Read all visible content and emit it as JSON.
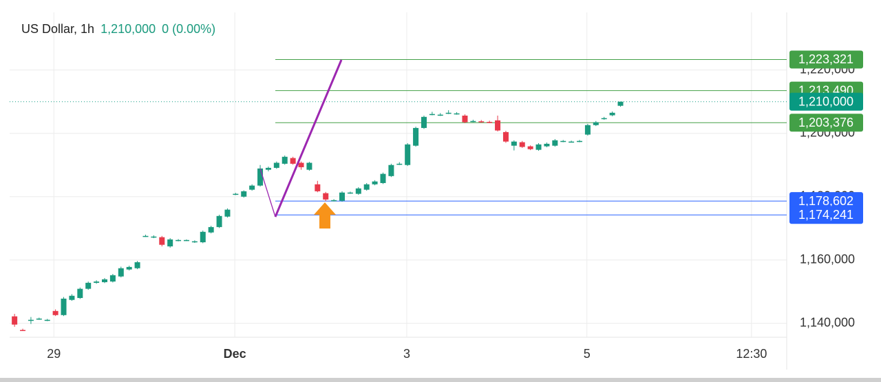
{
  "chart_data": {
    "type": "candlestick",
    "title": "US Dollar, 1h",
    "price_text": "1,210,000",
    "change_text": "0 (0.00%)",
    "up_color": "#1a9a7e",
    "down_color": "#e8394a",
    "grid": true,
    "xlim": [
      -0.6,
      94.3
    ],
    "xticks": [
      {
        "value": 4.8,
        "label": "29"
      },
      {
        "value": 26.9,
        "label": "Dec"
      },
      {
        "value": 47.9,
        "label": "3"
      },
      {
        "value": 69.9,
        "label": "5"
      },
      {
        "value": 90.0,
        "label": "12:30"
      }
    ],
    "ylim": [
      1135600,
      1238200
    ],
    "yticks": [
      {
        "value": 1140000,
        "label": "1,140,000"
      },
      {
        "value": 1160000,
        "label": "1,160,000"
      },
      {
        "value": 1180000,
        "label": "1,180,000"
      },
      {
        "value": 1200000,
        "label": "1,200,000"
      },
      {
        "value": 1220000,
        "label": "1,220,000"
      }
    ],
    "last_price": {
      "value": 1210000,
      "label": "1,210,000",
      "color": "#089981"
    },
    "levels": [
      {
        "value": 1223321,
        "label": "1,223,321",
        "color": "#43a047"
      },
      {
        "value": 1213490,
        "label": "1,213,490",
        "color": "#43a047"
      },
      {
        "value": 1203376,
        "label": "1,203,376",
        "color": "#43a047"
      },
      {
        "value": 1178602,
        "label": "1,178,602",
        "color": "#2962ff"
      },
      {
        "value": 1174241,
        "label": "1,174,241",
        "color": "#2962ff"
      }
    ],
    "candles": [
      [
        1142200,
        1143000,
        1138900,
        1139600
      ],
      [
        1137900,
        1138300,
        1137600,
        1137800
      ],
      [
        1141000,
        1142000,
        1139800,
        1141100
      ],
      [
        1141400,
        1141800,
        1141100,
        1141500
      ],
      [
        1141000,
        1141400,
        1140700,
        1141100
      ],
      [
        1143900,
        1144400,
        1142300,
        1142600
      ],
      [
        1142600,
        1148300,
        1142300,
        1147800
      ],
      [
        1147400,
        1149200,
        1147100,
        1148700
      ],
      [
        1148000,
        1151300,
        1147700,
        1150900
      ],
      [
        1150900,
        1153200,
        1150600,
        1152800
      ],
      [
        1152800,
        1153600,
        1152500,
        1153200
      ],
      [
        1153000,
        1154300,
        1152700,
        1153900
      ],
      [
        1153200,
        1155600,
        1152900,
        1155200
      ],
      [
        1154800,
        1157900,
        1154500,
        1157400
      ],
      [
        1157000,
        1158200,
        1156700,
        1157800
      ],
      [
        1157400,
        1159700,
        1157100,
        1159300
      ],
      [
        1167500,
        1168000,
        1167300,
        1167600
      ],
      [
        1167300,
        1167800,
        1166900,
        1167400
      ],
      [
        1167200,
        1167600,
        1164300,
        1164800
      ],
      [
        1164300,
        1166900,
        1163900,
        1166500
      ],
      [
        1166200,
        1166600,
        1165900,
        1166300
      ],
      [
        1166200,
        1166500,
        1166000,
        1166300
      ],
      [
        1165800,
        1166200,
        1165400,
        1165900
      ],
      [
        1165600,
        1169300,
        1165300,
        1168900
      ],
      [
        1168700,
        1170800,
        1168400,
        1170400
      ],
      [
        1170400,
        1174300,
        1170100,
        1173900
      ],
      [
        1173700,
        1176300,
        1173400,
        1175900
      ],
      [
        1180800,
        1181200,
        1180500,
        1180900
      ],
      [
        1180000,
        1182000,
        1179700,
        1181700
      ],
      [
        1182200,
        1183900,
        1181900,
        1183500
      ],
      [
        1183500,
        1190000,
        1183200,
        1188900
      ],
      [
        1188500,
        1189500,
        1188000,
        1189100
      ],
      [
        1189100,
        1191100,
        1188800,
        1190700
      ],
      [
        1190400,
        1193000,
        1190100,
        1192600
      ],
      [
        1192200,
        1192600,
        1190100,
        1190400
      ],
      [
        1190700,
        1191100,
        1188500,
        1189300
      ],
      [
        1188500,
        1191000,
        1188200,
        1190700
      ],
      [
        1183900,
        1185000,
        1181400,
        1181700
      ],
      [
        1181100,
        1181500,
        1178600,
        1179100
      ],
      [
        1178800,
        1179200,
        1178500,
        1178900
      ],
      [
        1178700,
        1181700,
        1178400,
        1181300
      ],
      [
        1181200,
        1181600,
        1180900,
        1181300
      ],
      [
        1180900,
        1183000,
        1180600,
        1182600
      ],
      [
        1182200,
        1184300,
        1181900,
        1183900
      ],
      [
        1183900,
        1185200,
        1183600,
        1184800
      ],
      [
        1184300,
        1187600,
        1184000,
        1187200
      ],
      [
        1186500,
        1190400,
        1186200,
        1190000
      ],
      [
        1190300,
        1190900,
        1190000,
        1190400
      ],
      [
        1190000,
        1196900,
        1189700,
        1196500
      ],
      [
        1196100,
        1202100,
        1195800,
        1201700
      ],
      [
        1201700,
        1205600,
        1201400,
        1205200
      ],
      [
        1206000,
        1206800,
        1205700,
        1206100
      ],
      [
        1205800,
        1206400,
        1205500,
        1205900
      ],
      [
        1206400,
        1207300,
        1206100,
        1206500
      ],
      [
        1206200,
        1206700,
        1205900,
        1206300
      ],
      [
        1205600,
        1206000,
        1203200,
        1203500
      ],
      [
        1203800,
        1204300,
        1203500,
        1203900
      ],
      [
        1203800,
        1204200,
        1203300,
        1203700
      ],
      [
        1203600,
        1204000,
        1203200,
        1203500
      ],
      [
        1204100,
        1205600,
        1200600,
        1200900
      ],
      [
        1200400,
        1200800,
        1197000,
        1197400
      ],
      [
        1196100,
        1197800,
        1194600,
        1197400
      ],
      [
        1197200,
        1197600,
        1195400,
        1195700
      ],
      [
        1195900,
        1196200,
        1194700,
        1195000
      ],
      [
        1194800,
        1196900,
        1194500,
        1196500
      ],
      [
        1195900,
        1197100,
        1195600,
        1196700
      ],
      [
        1196100,
        1198200,
        1195800,
        1197800
      ],
      [
        1197500,
        1197900,
        1197200,
        1197600
      ],
      [
        1197300,
        1197700,
        1197100,
        1197400
      ],
      [
        1197500,
        1197900,
        1197200,
        1197600
      ],
      [
        1199600,
        1203000,
        1199300,
        1202600
      ],
      [
        1202600,
        1203900,
        1202300,
        1203500
      ],
      [
        1204600,
        1205200,
        1204300,
        1204800
      ],
      [
        1205700,
        1206900,
        1205400,
        1206500
      ],
      [
        1208700,
        1210000,
        1208400,
        1210000
      ]
    ]
  }
}
